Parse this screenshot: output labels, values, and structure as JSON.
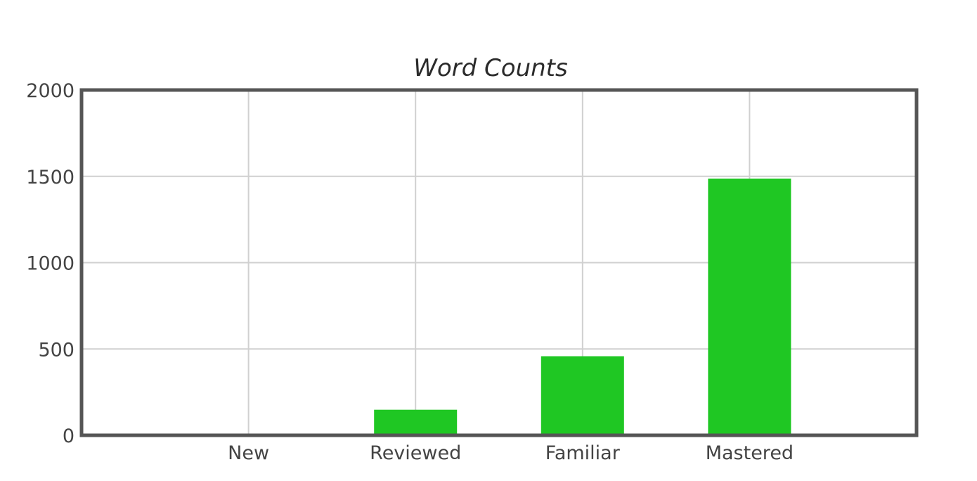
{
  "chart_data": {
    "type": "bar",
    "title": "Word Counts",
    "xlabel": "",
    "ylabel": "",
    "categories": [
      "New",
      "Reviewed",
      "Familiar",
      "Mastered"
    ],
    "values": [
      8,
      148,
      458,
      1487
    ],
    "ylim": [
      0,
      2000
    ],
    "yticks": [
      0,
      500,
      1000,
      1500,
      2000
    ],
    "grid": true,
    "legend": "none",
    "bar_color": "#1fc723"
  }
}
